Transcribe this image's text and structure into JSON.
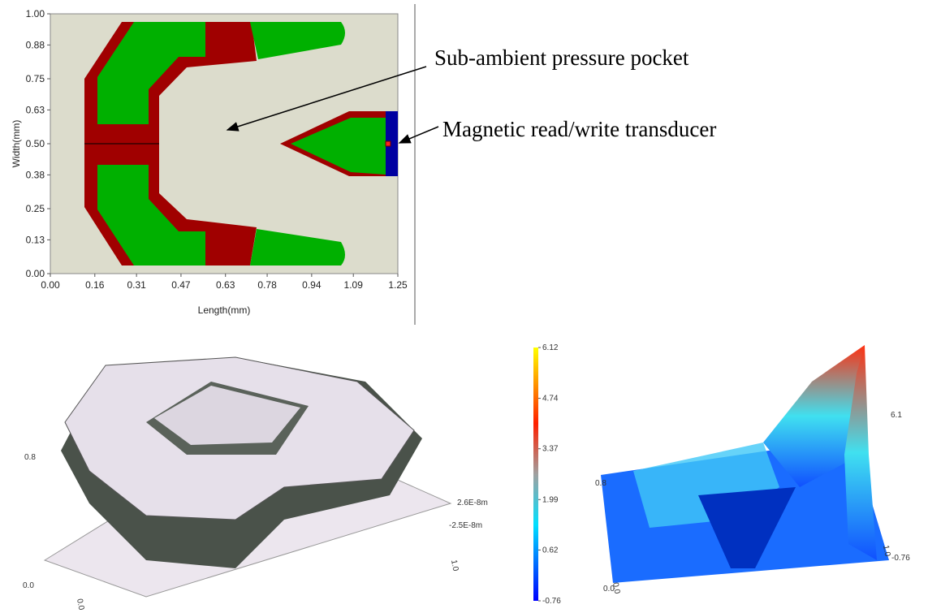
{
  "chart_data": [
    {
      "type": "shape",
      "xlabel": "Length(mm)",
      "ylabel": "Width(mm)",
      "xlim": [
        0,
        1.25
      ],
      "ylim": [
        0,
        1
      ],
      "xticks": [
        {
          "value": 0,
          "label": "0.00"
        },
        0.16,
        0.31,
        0.47,
        0.63,
        0.78,
        0.94,
        1.09,
        1.25
      ],
      "yticks": [
        {
          "value": 0,
          "label": "0.00"
        },
        0.13,
        0.25,
        0.38,
        {
          "value": 0.5,
          "label": "0.50"
        },
        0.63,
        0.75,
        0.88,
        {
          "value": 1,
          "label": "1.00"
        }
      ],
      "annotations": [
        "Sub-ambient pressure pocket",
        "Magnetic read/write transducer"
      ]
    },
    {
      "type": "colorbar",
      "ylim": [
        -0.76,
        6.12
      ],
      "yticks": [
        6.12,
        4.74,
        3.37,
        1.99,
        0.62,
        -0.76
      ]
    }
  ],
  "surface_plots": [
    {
      "labels": [
        "0.8",
        "0.0",
        "0.0",
        "1.0",
        "2.6E-8m",
        "-2.5E-8m"
      ]
    },
    {
      "labels": [
        "0.8",
        "6.1",
        "-0.76",
        "1.0",
        "0.0",
        "0.0"
      ]
    }
  ]
}
